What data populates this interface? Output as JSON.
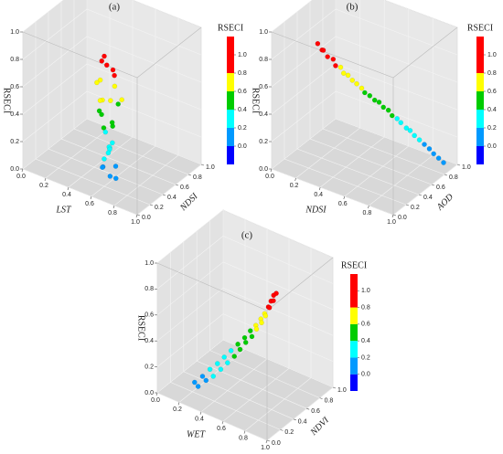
{
  "chart_data": [
    {
      "type": "scatter3d",
      "title": "(a)",
      "xlabel": "LST",
      "ylabel": "NDSI",
      "zlabel": "RSECI",
      "x": [
        0.6,
        0.65,
        0.55,
        0.7,
        0.62,
        0.58,
        0.68,
        0.52,
        0.64,
        0.72,
        0.57,
        0.66,
        0.61,
        0.54,
        0.69,
        0.63,
        0.59,
        0.71,
        0.56,
        0.67,
        0.62,
        0.65,
        0.58,
        0.7,
        0.6,
        0.73,
        0.55,
        0.64,
        0.68,
        0.61
      ],
      "y": [
        0.2,
        0.15,
        0.25,
        0.18,
        0.3,
        0.12,
        0.22,
        0.28,
        0.1,
        0.26,
        0.19,
        0.31,
        0.14,
        0.23,
        0.17,
        0.27,
        0.21,
        0.13,
        0.29,
        0.16,
        0.24,
        0.11,
        0.32,
        0.2,
        0.18,
        0.15,
        0.26,
        0.22,
        0.12,
        0.28
      ],
      "z": [
        0.95,
        0.92,
        0.88,
        0.85,
        0.82,
        0.78,
        0.75,
        0.72,
        0.68,
        0.65,
        0.62,
        0.58,
        0.55,
        0.52,
        0.48,
        0.45,
        0.42,
        0.38,
        0.35,
        0.32,
        0.28,
        0.25,
        0.22,
        0.18,
        0.15,
        0.12,
        0.1,
        0.08,
        0.3,
        0.6
      ],
      "xlim": [
        0,
        1
      ],
      "ylim": [
        0,
        1
      ],
      "zlim": [
        0,
        1
      ],
      "xticks": [
        {
          "value": 0,
          "label": "0.0"
        },
        0.2,
        0.4,
        0.6,
        0.8,
        {
          "value": 1,
          "label": "1.0"
        }
      ],
      "yticks": [
        {
          "value": 0,
          "label": "0.0"
        },
        0.2,
        0.4,
        0.6,
        0.8,
        {
          "value": 1,
          "label": "1.0"
        }
      ],
      "zticks": [
        {
          "value": 0,
          "label": "0.0"
        },
        0.2,
        0.4,
        0.6,
        0.8,
        {
          "value": 1,
          "label": "1.0"
        }
      ],
      "grid": true,
      "colorbar": {
        "title": "RSECI",
        "bounds": [
          -0.2,
          0,
          0.2,
          0.4,
          0.6,
          0.8,
          1.2
        ],
        "colors": [
          "#0000ff",
          "#0099ff",
          "#00ffff",
          "#00cc00",
          "#ffff00",
          "#ff0000"
        ],
        "ticks": [
          {
            "value": 1,
            "label": "1.0"
          },
          0.8,
          0.6,
          0.4,
          0.2,
          {
            "value": 0,
            "label": "0.0"
          }
        ]
      }
    },
    {
      "type": "scatter3d",
      "title": "(b)",
      "xlabel": "NDSI",
      "ylabel": "AOD",
      "zlabel": "RSECI",
      "x": [
        0.3,
        0.33,
        0.32,
        0.36,
        0.38,
        0.41,
        0.42,
        0.45,
        0.46,
        0.49,
        0.51,
        0.53,
        0.55,
        0.57,
        0.6,
        0.61,
        0.64,
        0.66,
        0.68,
        0.7,
        0.72,
        0.75,
        0.76,
        0.79,
        0.81,
        0.84,
        0.86,
        0.89,
        0.91,
        0.94
      ],
      "y": [
        0.15,
        0.16,
        0.2,
        0.19,
        0.24,
        0.22,
        0.28,
        0.27,
        0.32,
        0.33,
        0.36,
        0.4,
        0.41,
        0.45,
        0.47,
        0.52,
        0.53,
        0.57,
        0.59,
        0.63,
        0.65,
        0.68,
        0.72,
        0.73,
        0.77,
        0.79,
        0.83,
        0.84,
        0.88,
        0.9
      ],
      "z": [
        0.96,
        0.92,
        0.9,
        0.87,
        0.84,
        0.81,
        0.78,
        0.75,
        0.72,
        0.69,
        0.66,
        0.62,
        0.59,
        0.56,
        0.53,
        0.5,
        0.47,
        0.44,
        0.4,
        0.37,
        0.34,
        0.3,
        0.27,
        0.24,
        0.2,
        0.17,
        0.13,
        0.1,
        0.06,
        0.03
      ],
      "xlim": [
        0,
        1
      ],
      "ylim": [
        0,
        1
      ],
      "zlim": [
        0,
        1
      ],
      "xticks": [
        {
          "value": 0,
          "label": "0.0"
        },
        0.2,
        0.4,
        0.6,
        0.8,
        {
          "value": 1,
          "label": "1.0"
        }
      ],
      "yticks": [
        {
          "value": 0,
          "label": "0.0"
        },
        0.2,
        0.4,
        0.6,
        0.8,
        {
          "value": 1,
          "label": "1.0"
        }
      ],
      "zticks": [
        {
          "value": 0,
          "label": "0.0"
        },
        0.2,
        0.4,
        0.6,
        0.8,
        {
          "value": 1,
          "label": "1.0"
        }
      ],
      "grid": true,
      "colorbar": {
        "title": "RSECI",
        "bounds": [
          -0.2,
          0,
          0.2,
          0.4,
          0.6,
          0.8,
          1.2
        ],
        "colors": [
          "#0000ff",
          "#0099ff",
          "#00ffff",
          "#00cc00",
          "#ffff00",
          "#ff0000"
        ],
        "ticks": [
          {
            "value": 1,
            "label": "1.0"
          },
          0.8,
          0.6,
          0.4,
          0.2,
          {
            "value": 0,
            "label": "0.0"
          }
        ]
      }
    },
    {
      "type": "scatter3d",
      "title": "(c)",
      "xlabel": "WET",
      "ylabel": "NDVI",
      "zlabel": "RSECI",
      "x": [
        0.22,
        0.3,
        0.28,
        0.36,
        0.33,
        0.42,
        0.38,
        0.47,
        0.43,
        0.52,
        0.48,
        0.57,
        0.53,
        0.61,
        0.58,
        0.65,
        0.62,
        0.7,
        0.67,
        0.73,
        0.71,
        0.77,
        0.75,
        0.8,
        0.79,
        0.83,
        0.82,
        0.86,
        0.85,
        0.88
      ],
      "y": [
        0.2,
        0.12,
        0.22,
        0.14,
        0.25,
        0.15,
        0.28,
        0.18,
        0.3,
        0.2,
        0.32,
        0.22,
        0.34,
        0.24,
        0.36,
        0.26,
        0.38,
        0.27,
        0.38,
        0.29,
        0.39,
        0.3,
        0.38,
        0.31,
        0.37,
        0.32,
        0.36,
        0.33,
        0.35,
        0.34
      ],
      "z": [
        0.08,
        0.11,
        0.14,
        0.17,
        0.2,
        0.22,
        0.25,
        0.28,
        0.31,
        0.34,
        0.37,
        0.4,
        0.43,
        0.46,
        0.49,
        0.52,
        0.55,
        0.58,
        0.61,
        0.64,
        0.67,
        0.7,
        0.73,
        0.76,
        0.8,
        0.83,
        0.86,
        0.89,
        0.92,
        0.95
      ],
      "xlim": [
        0,
        1
      ],
      "ylim": [
        0,
        1
      ],
      "zlim": [
        0,
        1
      ],
      "xticks": [
        {
          "value": 0,
          "label": "0.0"
        },
        0.2,
        0.4,
        0.6,
        0.8,
        {
          "value": 1,
          "label": "1.0"
        }
      ],
      "yticks": [
        {
          "value": 0,
          "label": "0.0"
        },
        0.2,
        0.4,
        0.6,
        0.8,
        {
          "value": 1,
          "label": "1.0"
        }
      ],
      "zticks": [
        {
          "value": 0,
          "label": "0.0"
        },
        0.2,
        0.4,
        0.6,
        0.8,
        {
          "value": 1,
          "label": "1.0"
        }
      ],
      "grid": true,
      "colorbar": {
        "title": "RSECI",
        "bounds": [
          -0.2,
          0,
          0.2,
          0.4,
          0.6,
          0.8,
          1.2
        ],
        "colors": [
          "#0000ff",
          "#0099ff",
          "#00ffff",
          "#00cc00",
          "#ffff00",
          "#ff0000"
        ],
        "ticks": [
          {
            "value": 1,
            "label": "1.0"
          },
          0.8,
          0.6,
          0.4,
          0.2,
          {
            "value": 0,
            "label": "0.0"
          }
        ]
      }
    }
  ]
}
